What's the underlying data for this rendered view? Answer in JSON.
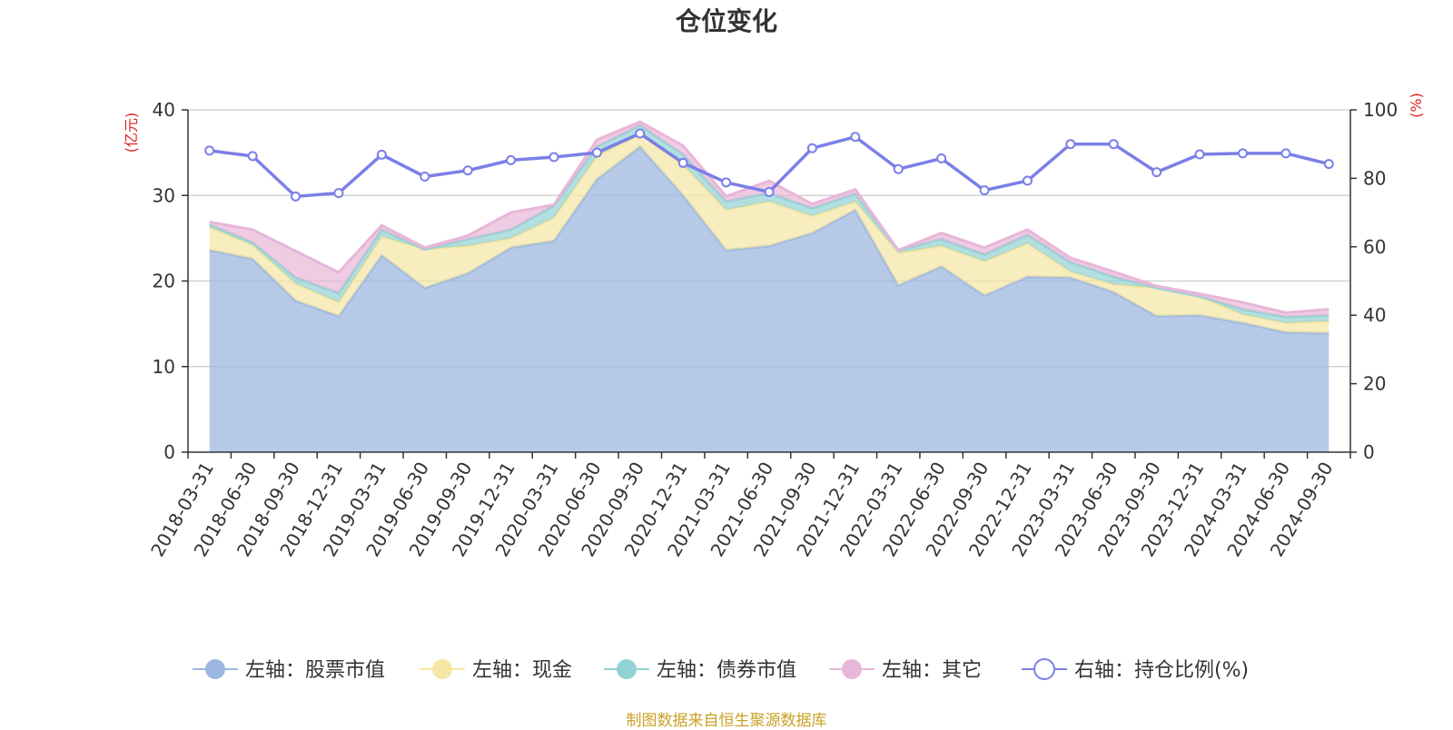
{
  "chart_data": {
    "type": "area",
    "title": "仓位变化",
    "categories": [
      "2018-03-31",
      "2018-06-30",
      "2018-09-30",
      "2018-12-31",
      "2019-03-31",
      "2019-06-30",
      "2019-09-30",
      "2019-12-31",
      "2020-03-31",
      "2020-06-30",
      "2020-09-30",
      "2020-12-31",
      "2021-03-31",
      "2021-06-30",
      "2021-09-30",
      "2021-12-31",
      "2022-03-31",
      "2022-06-30",
      "2022-09-30",
      "2022-12-31",
      "2023-03-31",
      "2023-06-30",
      "2023-09-30",
      "2023-12-31",
      "2024-03-31",
      "2024-06-30",
      "2024-09-30"
    ],
    "y_left": {
      "label": "(亿元)",
      "min": 0,
      "max": 40,
      "ticks": [
        0,
        10,
        20,
        30,
        40
      ]
    },
    "y_right": {
      "label": "(%)",
      "min": 0,
      "max": 100,
      "ticks": [
        0,
        20,
        40,
        60,
        80,
        100
      ]
    },
    "series": [
      {
        "name": "左轴：股票市值",
        "axis": "left",
        "stack": true,
        "color": "#9db8e0",
        "values": [
          23.6,
          22.6,
          17.7,
          15.9,
          23.0,
          19.2,
          20.9,
          23.9,
          24.7,
          31.9,
          35.7,
          30.0,
          23.6,
          24.1,
          25.6,
          28.3,
          19.5,
          21.7,
          18.3,
          20.5,
          20.4,
          18.7,
          15.9,
          16.0,
          15.1,
          14.0,
          13.9
        ]
      },
      {
        "name": "左轴：现金",
        "axis": "left",
        "stack": true,
        "color": "#f5e6a3",
        "values": [
          2.7,
          1.6,
          2.0,
          1.6,
          2.2,
          4.5,
          3.2,
          1.1,
          2.7,
          2.7,
          1.5,
          3.6,
          4.7,
          5.2,
          2.0,
          1.0,
          3.8,
          2.4,
          4.0,
          3.9,
          0.7,
          0.9,
          3.3,
          2.2,
          1.0,
          1.1,
          1.4
        ]
      },
      {
        "name": "左轴：债券市值",
        "axis": "left",
        "stack": true,
        "color": "#93d2d4",
        "values": [
          0.3,
          0.3,
          0.7,
          1.1,
          0.8,
          0.0,
          0.8,
          1.0,
          1.4,
          1.1,
          1.0,
          1.2,
          1.0,
          1.0,
          0.9,
          0.9,
          0.3,
          0.8,
          0.8,
          1.0,
          1.1,
          0.9,
          0.0,
          0.0,
          0.6,
          0.7,
          0.7
        ]
      },
      {
        "name": "左轴：其它",
        "axis": "left",
        "stack": true,
        "color": "#e8b6d8",
        "values": [
          0.3,
          1.5,
          3.1,
          2.4,
          0.5,
          0.2,
          0.4,
          2.0,
          0.1,
          0.8,
          0.4,
          1.0,
          0.6,
          1.4,
          0.5,
          0.5,
          0.0,
          0.7,
          0.8,
          0.6,
          0.5,
          0.6,
          0.2,
          0.3,
          0.8,
          0.5,
          0.7
        ]
      },
      {
        "name": "右轴：持仓比例(%)",
        "axis": "right",
        "stack": false,
        "color": "#7b7fe8",
        "values": [
          88.1,
          86.5,
          74.7,
          75.7,
          86.9,
          80.5,
          82.3,
          85.3,
          86.2,
          87.5,
          93.1,
          84.5,
          78.8,
          76.0,
          88.8,
          92.1,
          82.7,
          85.8,
          76.5,
          79.3,
          90.0,
          90.0,
          81.8,
          87.0,
          87.3,
          87.3,
          84.2
        ]
      }
    ],
    "legend_position": "bottom"
  },
  "footer": {
    "source": "制图数据来自恒生聚源数据库"
  }
}
